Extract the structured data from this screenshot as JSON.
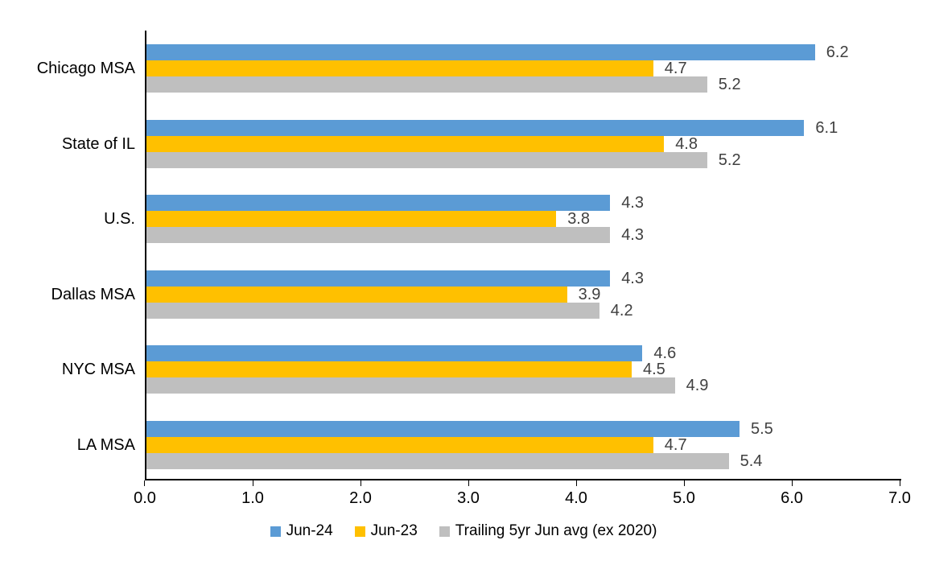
{
  "chart_data": {
    "type": "bar",
    "orientation": "horizontal",
    "title": "",
    "xlabel": "",
    "ylabel": "",
    "categories": [
      "Chicago MSA",
      "State of IL",
      "U.S.",
      "Dallas MSA",
      "NYC MSA",
      "LA MSA"
    ],
    "series": [
      {
        "name": "Jun-24",
        "color": "#5B9BD5",
        "values": [
          6.2,
          6.1,
          4.3,
          4.3,
          4.6,
          5.5
        ]
      },
      {
        "name": "Jun-23",
        "color": "#FFC000",
        "values": [
          4.7,
          4.8,
          3.8,
          3.9,
          4.5,
          4.7
        ]
      },
      {
        "name": "Trailing 5yr Jun avg (ex 2020)",
        "color": "#BFBFBF",
        "values": [
          5.2,
          5.2,
          4.3,
          4.2,
          4.9,
          5.4
        ]
      }
    ],
    "xlim": [
      0,
      7
    ],
    "x_ticks": [
      0,
      1,
      2,
      3,
      4,
      5,
      6,
      7
    ],
    "x_tick_labels": [
      "0.0",
      "1.0",
      "2.0",
      "3.0",
      "4.0",
      "5.0",
      "6.0",
      "7.0"
    ],
    "data_labels": true,
    "data_label_color": "#404040",
    "grid": false,
    "legend_position": "bottom"
  }
}
